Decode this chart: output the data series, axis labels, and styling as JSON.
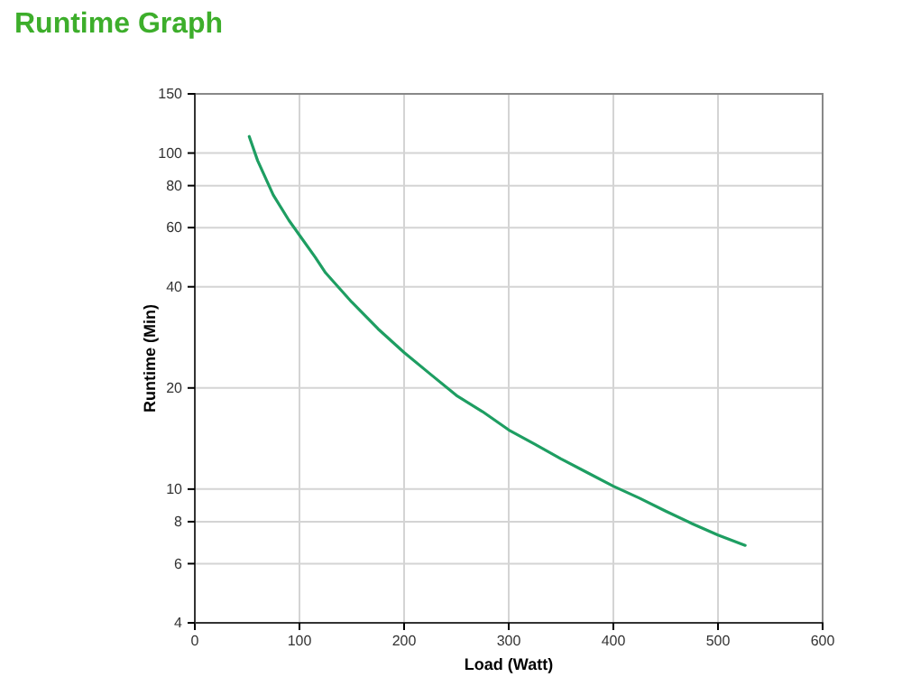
{
  "chart_data": {
    "type": "line",
    "title": "Runtime Graph",
    "xlabel": "Load (Watt)",
    "ylabel": "Runtime (Min)",
    "x": [
      52,
      60,
      75,
      90,
      100,
      115,
      125,
      140,
      150,
      175,
      200,
      225,
      250,
      275,
      300,
      325,
      350,
      375,
      400,
      425,
      450,
      475,
      500,
      526
    ],
    "series": [
      {
        "color": "#1e9e62",
        "values": [
          112,
          95,
          75,
          63,
          57,
          49,
          44,
          39,
          36,
          30,
          25.5,
          22,
          19,
          17,
          15,
          13.6,
          12.3,
          11.2,
          10.2,
          9.4,
          8.6,
          7.9,
          7.3,
          6.8
        ]
      }
    ],
    "xlim": [
      0,
      600
    ],
    "xticks": [
      0,
      100,
      200,
      300,
      400,
      500,
      600
    ],
    "ylim": [
      4,
      150
    ],
    "yticks": [
      4,
      6,
      8,
      10,
      20,
      40,
      60,
      80,
      100,
      150
    ],
    "log": "y",
    "grid": true,
    "marker": "none",
    "line_style": "solid"
  }
}
